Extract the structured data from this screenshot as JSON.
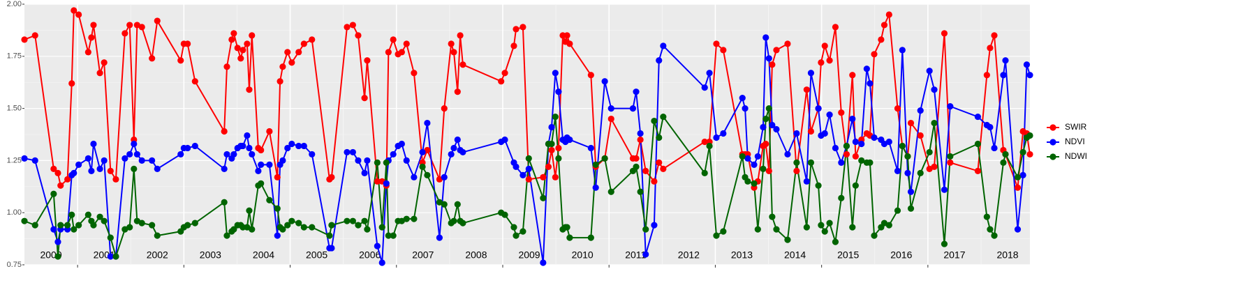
{
  "chart_data": {
    "type": "line",
    "x": [
      2000.0,
      2000.2,
      2000.55,
      2000.63,
      2000.68,
      2000.81,
      2000.89,
      2000.93,
      2001.02,
      2001.2,
      2001.26,
      2001.3,
      2001.42,
      2001.5,
      2001.62,
      2001.72,
      2001.89,
      2001.98,
      2002.06,
      2002.12,
      2002.21,
      2002.4,
      2002.5,
      2002.94,
      2003.0,
      2003.07,
      2003.21,
      2003.76,
      2003.81,
      2003.9,
      2003.94,
      2004.01,
      2004.07,
      2004.11,
      2004.19,
      2004.23,
      2004.28,
      2004.4,
      2004.45,
      2004.61,
      2004.76,
      2004.81,
      2004.86,
      2004.95,
      2005.03,
      2005.16,
      2005.26,
      2005.41,
      2005.74,
      2005.78,
      2006.07,
      2006.18,
      2006.28,
      2006.4,
      2006.45,
      2006.64,
      2006.73,
      2006.81,
      2006.85,
      2006.94,
      2007.03,
      2007.1,
      2007.19,
      2007.33,
      2007.49,
      2007.58,
      2007.81,
      2007.9,
      2008.03,
      2008.08,
      2008.15,
      2008.2,
      2008.25,
      2008.97,
      2009.04,
      2009.21,
      2009.25,
      2009.38,
      2009.49,
      2009.76,
      2009.86,
      2009.92,
      2009.99,
      2010.05,
      2010.13,
      2010.18,
      2010.21,
      2010.26,
      2010.66,
      2010.75,
      2010.92,
      2011.04,
      2011.45,
      2011.51,
      2011.59,
      2011.69,
      2011.85,
      2011.94,
      2012.02,
      2012.8,
      2012.89,
      2013.02,
      2013.15,
      2013.51,
      2013.56,
      2013.61,
      2013.73,
      2013.8,
      2013.9,
      2013.95,
      2014.01,
      2014.07,
      2014.15,
      2014.36,
      2014.53,
      2014.72,
      2014.8,
      2014.94,
      2014.99,
      2015.06,
      2015.15,
      2015.26,
      2015.37,
      2015.47,
      2015.58,
      2015.64,
      2015.75,
      2015.85,
      2015.91,
      2015.99,
      2016.12,
      2016.18,
      2016.27,
      2016.43,
      2016.52,
      2016.62,
      2016.68,
      2016.86,
      2017.03,
      2017.12,
      2017.31,
      2017.42,
      2017.94,
      2018.11,
      2018.17,
      2018.25,
      2018.42,
      2018.46,
      2018.69,
      2018.79,
      2018.86,
      2018.92
    ],
    "series": [
      {
        "name": "SWIR",
        "color": "#ff0000",
        "values": [
          1.83,
          1.85,
          1.21,
          1.19,
          1.13,
          1.16,
          1.62,
          1.97,
          1.95,
          1.77,
          1.84,
          1.9,
          1.67,
          1.72,
          1.2,
          1.16,
          1.86,
          1.9,
          1.35,
          1.9,
          1.89,
          1.74,
          1.92,
          1.73,
          1.81,
          1.81,
          1.63,
          1.39,
          1.7,
          1.83,
          1.86,
          1.79,
          1.74,
          1.78,
          1.81,
          1.59,
          1.85,
          1.31,
          1.3,
          1.39,
          1.17,
          1.63,
          1.7,
          1.77,
          1.72,
          1.77,
          1.81,
          1.83,
          1.16,
          1.17,
          1.89,
          1.9,
          1.85,
          1.55,
          1.73,
          1.15,
          1.15,
          1.13,
          1.77,
          1.83,
          1.76,
          1.77,
          1.81,
          1.67,
          1.24,
          1.3,
          1.16,
          1.5,
          1.81,
          1.77,
          1.58,
          1.85,
          1.71,
          1.63,
          1.67,
          1.8,
          1.88,
          1.89,
          1.16,
          1.17,
          1.22,
          1.3,
          1.17,
          1.31,
          1.85,
          1.82,
          1.85,
          1.81,
          1.66,
          1.22,
          1.26,
          1.45,
          1.26,
          1.26,
          1.35,
          1.2,
          1.15,
          1.24,
          1.21,
          1.34,
          1.34,
          1.81,
          1.78,
          1.28,
          1.28,
          1.28,
          1.12,
          1.15,
          1.32,
          1.33,
          1.2,
          1.71,
          1.78,
          1.81,
          1.2,
          1.59,
          1.39,
          1.5,
          1.72,
          1.8,
          1.73,
          1.89,
          1.48,
          1.28,
          1.66,
          1.27,
          1.35,
          1.38,
          1.37,
          1.76,
          1.83,
          1.9,
          1.95,
          1.5,
          1.32,
          1.27,
          1.43,
          1.37,
          1.21,
          1.22,
          1.86,
          1.24,
          1.2,
          1.66,
          1.79,
          1.85,
          1.3,
          1.28,
          1.12,
          1.39,
          1.38,
          1.28
        ]
      },
      {
        "name": "NDVI",
        "color": "#0000ff",
        "values": [
          1.26,
          1.25,
          0.92,
          0.86,
          0.92,
          0.92,
          1.18,
          1.19,
          1.23,
          1.26,
          1.2,
          1.33,
          1.21,
          1.25,
          0.79,
          0.79,
          1.26,
          1.28,
          1.33,
          1.28,
          1.25,
          1.25,
          1.21,
          1.28,
          1.31,
          1.31,
          1.32,
          1.21,
          1.28,
          1.26,
          1.28,
          1.31,
          1.32,
          1.32,
          1.37,
          1.31,
          1.28,
          1.2,
          1.23,
          1.23,
          0.89,
          1.23,
          1.25,
          1.31,
          1.33,
          1.32,
          1.32,
          1.28,
          0.83,
          0.83,
          1.29,
          1.29,
          1.25,
          1.19,
          1.25,
          0.84,
          0.76,
          1.14,
          1.25,
          1.28,
          1.32,
          1.33,
          1.25,
          1.17,
          1.29,
          1.43,
          0.88,
          1.17,
          1.28,
          1.31,
          1.35,
          1.3,
          1.29,
          1.34,
          1.35,
          1.24,
          1.22,
          1.18,
          1.21,
          0.76,
          1.33,
          1.41,
          1.67,
          1.58,
          1.35,
          1.34,
          1.36,
          1.35,
          1.31,
          1.12,
          1.63,
          1.5,
          1.5,
          1.58,
          1.38,
          0.8,
          0.94,
          1.73,
          1.8,
          1.6,
          1.67,
          1.36,
          1.38,
          1.55,
          1.5,
          1.26,
          1.23,
          1.27,
          1.41,
          1.84,
          1.74,
          1.42,
          1.4,
          1.28,
          1.38,
          1.15,
          1.67,
          1.5,
          1.37,
          1.38,
          1.47,
          1.31,
          1.24,
          1.32,
          1.45,
          1.34,
          1.33,
          1.69,
          1.62,
          1.36,
          1.35,
          1.33,
          1.34,
          1.2,
          1.78,
          1.19,
          1.1,
          1.49,
          1.68,
          1.59,
          1.11,
          1.51,
          1.46,
          1.42,
          1.41,
          1.31,
          1.66,
          1.73,
          0.92,
          1.18,
          1.71,
          1.66
        ]
      },
      {
        "name": "NDWI",
        "color": "#006400",
        "values": [
          0.96,
          0.94,
          1.09,
          0.79,
          0.94,
          0.94,
          0.99,
          0.92,
          0.94,
          0.99,
          0.96,
          0.94,
          0.98,
          0.96,
          0.88,
          0.79,
          0.92,
          0.93,
          1.21,
          0.96,
          0.95,
          0.94,
          0.89,
          0.91,
          0.93,
          0.94,
          0.95,
          1.05,
          0.89,
          0.91,
          0.92,
          0.94,
          0.94,
          0.93,
          0.93,
          1.01,
          0.92,
          1.13,
          1.14,
          1.06,
          1.02,
          0.93,
          0.92,
          0.94,
          0.96,
          0.95,
          0.93,
          0.93,
          0.89,
          0.94,
          0.96,
          0.96,
          0.94,
          0.96,
          0.92,
          1.24,
          0.93,
          1.24,
          0.89,
          0.89,
          0.96,
          0.96,
          0.97,
          0.97,
          1.22,
          1.18,
          1.05,
          1.04,
          0.95,
          0.96,
          1.04,
          0.96,
          0.95,
          1.0,
          0.99,
          0.93,
          0.89,
          0.91,
          1.26,
          1.07,
          1.33,
          1.33,
          1.46,
          1.26,
          0.92,
          0.93,
          0.93,
          0.88,
          0.88,
          1.23,
          1.26,
          1.1,
          1.2,
          1.22,
          1.1,
          0.92,
          1.44,
          1.36,
          1.46,
          1.19,
          1.32,
          0.89,
          0.91,
          1.27,
          1.17,
          1.15,
          1.14,
          0.92,
          1.21,
          1.45,
          1.5,
          0.98,
          0.92,
          0.87,
          1.24,
          0.93,
          1.24,
          1.13,
          0.94,
          0.91,
          0.95,
          0.86,
          1.07,
          1.32,
          0.93,
          1.13,
          1.25,
          1.24,
          1.24,
          0.89,
          0.93,
          0.95,
          0.94,
          1.01,
          1.32,
          1.27,
          1.02,
          1.19,
          1.29,
          1.43,
          0.85,
          1.27,
          1.33,
          0.98,
          0.92,
          0.89,
          1.24,
          1.28,
          1.17,
          1.29,
          1.36,
          1.37
        ]
      }
    ],
    "xlim": [
      2000,
      2018.92
    ],
    "xticks": [
      2001,
      2003,
      2005,
      2007,
      2009,
      2011,
      2013,
      2015,
      2017
    ],
    "ylim": [
      0.75,
      2.0
    ],
    "yticks": [
      0.75,
      {
        "value": 1,
        "label": "1.00"
      },
      1.25,
      {
        "value": 1.5,
        "label": "1.50"
      },
      1.75,
      {
        "value": 2,
        "label": "2.00"
      }
    ],
    "annotations": [
      {
        "text": "2000",
        "x": 2000.5
      },
      {
        "text": "2001",
        "x": 2001.5
      },
      {
        "text": "2002",
        "x": 2002.5
      },
      {
        "text": "2003",
        "x": 2003.5
      },
      {
        "text": "2004",
        "x": 2004.5
      },
      {
        "text": "2005",
        "x": 2005.5
      },
      {
        "text": "2006",
        "x": 2006.5
      },
      {
        "text": "2007",
        "x": 2007.5
      },
      {
        "text": "2008",
        "x": 2008.5
      },
      {
        "text": "2009",
        "x": 2009.5
      },
      {
        "text": "2010",
        "x": 2010.5
      },
      {
        "text": "2011",
        "x": 2011.5
      },
      {
        "text": "2012",
        "x": 2012.5
      },
      {
        "text": "2013",
        "x": 2013.5
      },
      {
        "text": "2014",
        "x": 2014.5
      },
      {
        "text": "2015",
        "x": 2015.5
      },
      {
        "text": "2016",
        "x": 2016.5
      },
      {
        "text": "2017",
        "x": 2017.5
      },
      {
        "text": "2018",
        "x": 2018.5
      }
    ],
    "grid": true,
    "legend": "right"
  }
}
